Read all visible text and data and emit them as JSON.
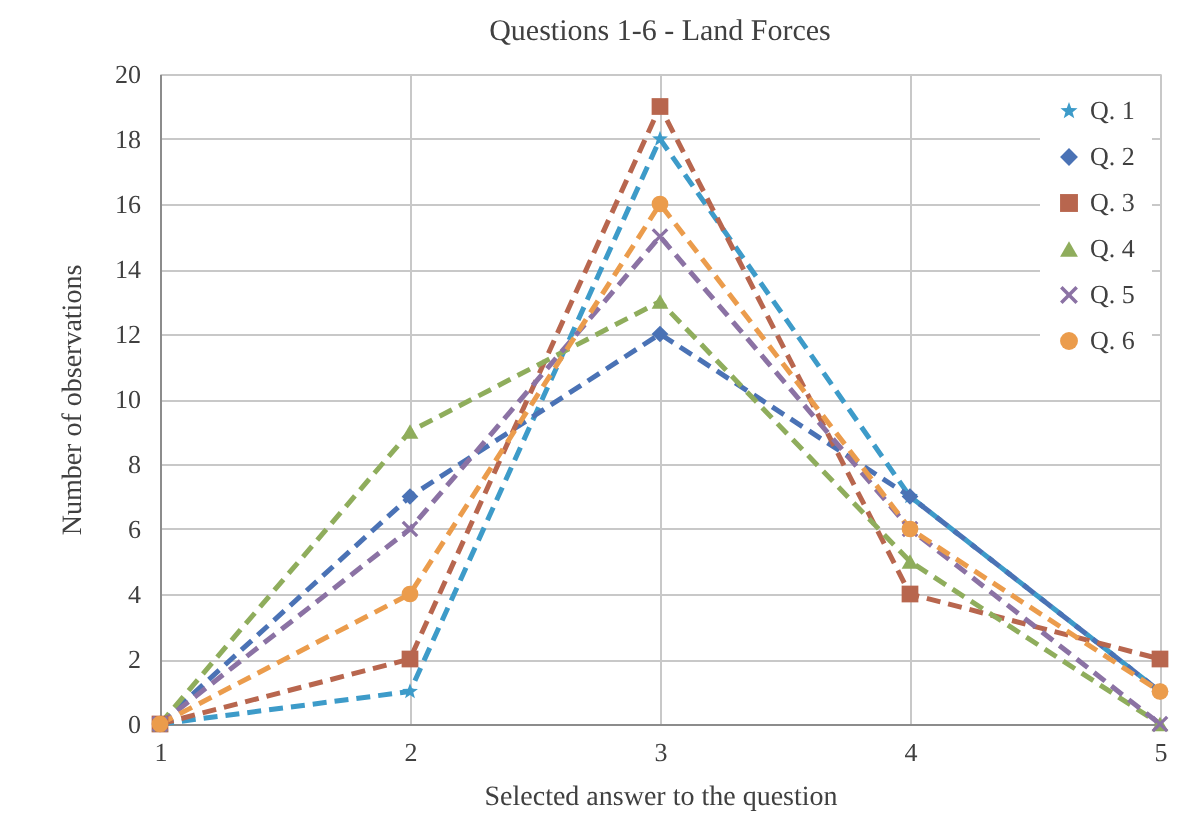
{
  "chart_data": {
    "type": "line",
    "title": "Questions 1-6  - Land Forces",
    "xlabel": "Selected answer to the question",
    "ylabel": "Number of observations",
    "x": [
      1,
      2,
      3,
      4,
      5
    ],
    "xlim": [
      1,
      5
    ],
    "xticks": [
      1,
      2,
      3,
      4,
      5
    ],
    "ylim": [
      0,
      20
    ],
    "yticks": [
      0,
      2,
      4,
      6,
      8,
      10,
      12,
      14,
      16,
      18,
      20
    ],
    "grid": true,
    "legend": "top right",
    "line_style": "dashed",
    "series": [
      {
        "name": "Q. 1",
        "color": "#3d9bc9",
        "marker": "star",
        "values": [
          0,
          1,
          18,
          7,
          1
        ]
      },
      {
        "name": "Q. 2",
        "color": "#4a72b5",
        "marker": "diamond",
        "values": [
          0,
          7,
          12,
          7,
          1
        ]
      },
      {
        "name": "Q. 3",
        "color": "#b8664e",
        "marker": "square",
        "values": [
          0,
          2,
          19,
          4,
          2
        ]
      },
      {
        "name": "Q. 4",
        "color": "#8fad5c",
        "marker": "triangle",
        "values": [
          0,
          9,
          13,
          5,
          0
        ]
      },
      {
        "name": "Q. 5",
        "color": "#8b72a4",
        "marker": "cross",
        "values": [
          0,
          6,
          15,
          6,
          0
        ]
      },
      {
        "name": "Q. 6",
        "color": "#eb9c4c",
        "marker": "circle",
        "values": [
          0,
          4,
          16,
          6,
          1
        ]
      }
    ]
  }
}
